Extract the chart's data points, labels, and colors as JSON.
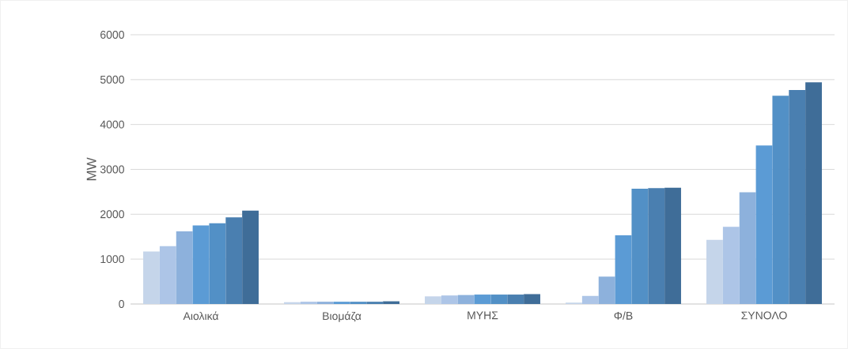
{
  "chart_data": {
    "type": "bar",
    "ylabel": "MW",
    "categories": [
      "Αιολικά",
      "Βιομάζα",
      "ΜΥΗΣ",
      "Φ/Β",
      "ΣΥΝΟΛΟ"
    ],
    "series": [
      {
        "color": "#c5d5ea",
        "values": [
          1170,
          40,
          170,
          30,
          1430
        ]
      },
      {
        "color": "#adc5e7",
        "values": [
          1290,
          50,
          190,
          180,
          1720
        ]
      },
      {
        "color": "#8db1dc",
        "values": [
          1620,
          50,
          200,
          610,
          2490
        ]
      },
      {
        "color": "#5b9bd5",
        "values": [
          1750,
          50,
          210,
          1530,
          3530
        ]
      },
      {
        "color": "#5290c6",
        "values": [
          1800,
          50,
          210,
          2570,
          4640
        ]
      },
      {
        "color": "#4a7fb0",
        "values": [
          1930,
          50,
          210,
          2580,
          4770
        ]
      },
      {
        "color": "#3f6d98",
        "values": [
          2080,
          60,
          220,
          2590,
          4940
        ]
      }
    ],
    "ylim": [
      0,
      6000
    ],
    "yticks": [
      0,
      1000,
      2000,
      3000,
      4000,
      5000,
      6000
    ],
    "grid": "y"
  }
}
